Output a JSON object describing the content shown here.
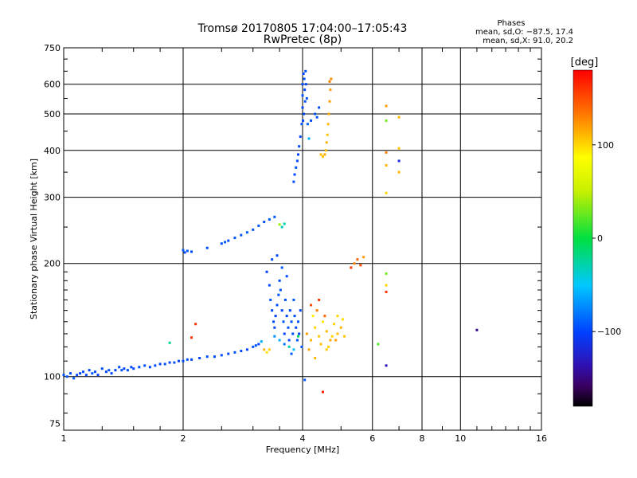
{
  "chart_data": {
    "type": "scatter",
    "title": "Tromsø 20170805 17:04:00–17:05:43",
    "subtitle": "RwPretec (8p)",
    "xlabel": "Frequency [MHz]",
    "ylabel": "Stationary phase Virtual Height [km]",
    "x_scale": "log2",
    "y_scale": "log",
    "xlim": [
      1,
      16
    ],
    "ylim": [
      72,
      750
    ],
    "x_ticks": [
      1,
      2,
      4,
      6,
      8,
      10,
      16
    ],
    "x_tick_labels": [
      "1",
      "2",
      "4",
      "6",
      "8",
      "10",
      "16"
    ],
    "y_ticks": [
      75,
      100,
      200,
      300,
      400,
      500,
      600,
      750
    ],
    "y_tick_labels": [
      "75",
      "100",
      "200",
      "300",
      "400",
      "500",
      "600",
      "750"
    ],
    "grid": true,
    "stats": {
      "heading": "Phases",
      "o_line": "mean, sd,O: −87.5, 17.4",
      "x_line": "mean, sd,X:  91.0, 20.2"
    },
    "colorbar": {
      "label": "[deg]",
      "range": [
        -180,
        180
      ],
      "ticks": [
        100,
        0,
        -100
      ],
      "tick_labels": [
        "100",
        "0",
        "−100"
      ],
      "colormap": "rainbow"
    },
    "series": [
      {
        "points": [
          [
            1.0,
            101,
            -95
          ],
          [
            1.02,
            100,
            -92
          ],
          [
            1.04,
            102,
            -98
          ],
          [
            1.06,
            99,
            -90
          ],
          [
            1.08,
            101,
            -96
          ],
          [
            1.1,
            102,
            -100
          ],
          [
            1.12,
            103,
            -94
          ],
          [
            1.14,
            101,
            -97
          ],
          [
            1.16,
            104,
            -99
          ],
          [
            1.18,
            102,
            -92
          ],
          [
            1.2,
            103,
            -96
          ],
          [
            1.22,
            101,
            -101
          ],
          [
            1.25,
            105,
            -95
          ],
          [
            1.28,
            103,
            -98
          ],
          [
            1.3,
            104,
            -93
          ],
          [
            1.32,
            102,
            -97
          ],
          [
            1.35,
            104,
            -100
          ],
          [
            1.38,
            106,
            -96
          ],
          [
            1.4,
            104,
            -94
          ],
          [
            1.42,
            105,
            -99
          ],
          [
            1.45,
            104,
            -95
          ],
          [
            1.48,
            106,
            -97
          ],
          [
            1.5,
            105,
            -100
          ],
          [
            1.55,
            106,
            -96
          ],
          [
            1.6,
            107,
            -94
          ],
          [
            1.65,
            106,
            -98
          ],
          [
            1.7,
            107,
            -96
          ],
          [
            1.75,
            108,
            -99
          ],
          [
            1.8,
            108,
            -95
          ],
          [
            1.85,
            109,
            -97
          ],
          [
            1.9,
            109,
            -94
          ],
          [
            1.95,
            110,
            -98
          ],
          [
            2.0,
            110,
            -96
          ],
          [
            2.05,
            111,
            -93
          ],
          [
            2.1,
            111,
            -97
          ],
          [
            2.2,
            112,
            -99
          ],
          [
            2.3,
            113,
            -94
          ],
          [
            2.4,
            113,
            -97
          ],
          [
            2.5,
            114,
            -95
          ],
          [
            2.6,
            115,
            -98
          ],
          [
            2.7,
            116,
            -93
          ],
          [
            2.8,
            117,
            -96
          ],
          [
            2.9,
            118,
            -97
          ],
          [
            3.0,
            120,
            -94
          ],
          [
            3.05,
            121,
            -92
          ],
          [
            3.1,
            122,
            -96
          ],
          [
            3.15,
            124,
            -60
          ],
          [
            3.2,
            118,
            110
          ],
          [
            3.25,
            116,
            95
          ],
          [
            3.3,
            118,
            100
          ],
          [
            2.1,
            127,
            160
          ],
          [
            1.85,
            123,
            -20
          ]
        ]
      },
      {
        "points": [
          [
            2.0,
            217,
            -90
          ],
          [
            2.02,
            214,
            -95
          ],
          [
            2.05,
            216,
            -92
          ],
          [
            2.1,
            215,
            -97
          ],
          [
            2.3,
            220,
            -96
          ],
          [
            2.5,
            226,
            -94
          ],
          [
            2.55,
            228,
            -90
          ],
          [
            2.6,
            230,
            -95
          ],
          [
            2.7,
            234,
            -92
          ],
          [
            2.8,
            238,
            -93
          ],
          [
            2.9,
            242,
            -90
          ],
          [
            3.0,
            246,
            -94
          ],
          [
            3.1,
            252,
            -91
          ],
          [
            3.2,
            258,
            -95
          ],
          [
            3.3,
            262,
            -92
          ],
          [
            3.4,
            266,
            -93
          ],
          [
            3.5,
            254,
            40
          ],
          [
            3.55,
            250,
            -30
          ]
        ]
      },
      {
        "points": [
          [
            3.25,
            190,
            -100
          ],
          [
            3.3,
            175,
            -95
          ],
          [
            3.32,
            160,
            -92
          ],
          [
            3.35,
            150,
            -97
          ],
          [
            3.38,
            140,
            -94
          ],
          [
            3.4,
            135,
            -98
          ],
          [
            3.42,
            145,
            -100
          ],
          [
            3.45,
            155,
            -95
          ],
          [
            3.48,
            165,
            -93
          ],
          [
            3.5,
            180,
            -96
          ],
          [
            3.52,
            170,
            -94
          ],
          [
            3.55,
            150,
            -99
          ],
          [
            3.58,
            140,
            -92
          ],
          [
            3.6,
            130,
            -97
          ],
          [
            3.62,
            160,
            -95
          ],
          [
            3.65,
            145,
            -98
          ],
          [
            3.68,
            135,
            -93
          ],
          [
            3.7,
            125,
            -96
          ],
          [
            3.72,
            150,
            -100
          ],
          [
            3.75,
            140,
            -94
          ],
          [
            3.78,
            130,
            -97
          ],
          [
            3.8,
            160,
            -92
          ],
          [
            3.82,
            145,
            -96
          ],
          [
            3.85,
            135,
            -98
          ],
          [
            3.88,
            125,
            -95
          ],
          [
            3.9,
            140,
            -93
          ],
          [
            3.92,
            130,
            -99
          ],
          [
            3.95,
            150,
            -96
          ],
          [
            3.98,
            120,
            -94
          ],
          [
            3.35,
            205,
            -95
          ],
          [
            3.45,
            210,
            -98
          ],
          [
            3.55,
            195,
            -92
          ],
          [
            3.65,
            185,
            -97
          ],
          [
            3.5,
            125,
            -60
          ],
          [
            3.7,
            120,
            -30
          ],
          [
            3.8,
            118,
            -50
          ],
          [
            3.4,
            128,
            -70
          ],
          [
            3.6,
            122,
            -80
          ],
          [
            3.9,
            128,
            -10
          ],
          [
            3.75,
            115,
            -90
          ]
        ]
      },
      {
        "points": [
          [
            3.8,
            330,
            -95
          ],
          [
            3.82,
            345,
            -98
          ],
          [
            3.85,
            360,
            -93
          ],
          [
            3.88,
            375,
            -96
          ],
          [
            3.9,
            390,
            -100
          ],
          [
            3.92,
            410,
            -94
          ],
          [
            3.95,
            435,
            -97
          ],
          [
            3.98,
            470,
            -95
          ],
          [
            4.0,
            520,
            -98
          ],
          [
            4.0,
            560,
            -93
          ],
          [
            4.0,
            600,
            -96
          ],
          [
            4.02,
            640,
            -100
          ],
          [
            4.04,
            620,
            -94
          ],
          [
            4.05,
            580,
            -97
          ],
          [
            4.06,
            540,
            -92
          ],
          [
            4.03,
            500,
            -96
          ],
          [
            4.01,
            480,
            -99
          ],
          [
            4.07,
            650,
            -95
          ],
          [
            4.08,
            600,
            -98
          ],
          [
            4.1,
            550,
            -93
          ],
          [
            4.12,
            470,
            -90
          ],
          [
            4.15,
            430,
            -60
          ],
          [
            4.2,
            480,
            -95
          ],
          [
            4.3,
            500,
            -92
          ],
          [
            4.4,
            520,
            -97
          ],
          [
            4.35,
            490,
            -94
          ]
        ]
      },
      {
        "points": [
          [
            4.45,
            390,
            110
          ],
          [
            4.5,
            385,
            105
          ],
          [
            4.55,
            390,
            115
          ],
          [
            4.58,
            400,
            108
          ],
          [
            4.6,
            420,
            112
          ],
          [
            4.62,
            440,
            106
          ],
          [
            4.64,
            470,
            110
          ],
          [
            4.66,
            500,
            114
          ],
          [
            4.68,
            540,
            118
          ],
          [
            4.7,
            580,
            120
          ],
          [
            4.72,
            620,
            125
          ],
          [
            4.68,
            610,
            130
          ]
        ]
      },
      {
        "points": [
          [
            4.1,
            130,
            120
          ],
          [
            4.2,
            125,
            110
          ],
          [
            4.3,
            135,
            100
          ],
          [
            4.4,
            128,
            105
          ],
          [
            4.5,
            140,
            95
          ],
          [
            4.6,
            132,
            110
          ],
          [
            4.7,
            125,
            115
          ],
          [
            4.8,
            138,
            100
          ],
          [
            4.9,
            130,
            108
          ],
          [
            5.0,
            135,
            112
          ],
          [
            5.1,
            128,
            105
          ],
          [
            4.25,
            145,
            90
          ],
          [
            4.35,
            150,
            130
          ],
          [
            4.55,
            145,
            140
          ],
          [
            4.75,
            128,
            100
          ],
          [
            4.15,
            118,
            115
          ],
          [
            4.45,
            122,
            108
          ],
          [
            4.65,
            120,
            102
          ],
          [
            4.85,
            125,
            118
          ],
          [
            5.05,
            142,
            96
          ],
          [
            4.2,
            155,
            150
          ],
          [
            4.4,
            160,
            160
          ],
          [
            4.3,
            112,
            110
          ],
          [
            4.6,
            118,
            104
          ],
          [
            4.9,
            145,
            99
          ]
        ]
      },
      {
        "points": [
          [
            5.5,
            205,
            140
          ],
          [
            5.6,
            198,
            150
          ],
          [
            5.4,
            200,
            130
          ],
          [
            5.7,
            208,
            120
          ],
          [
            5.3,
            195,
            160
          ]
        ]
      },
      {
        "points": [
          [
            6.5,
            525,
            120
          ],
          [
            6.5,
            480,
            30
          ],
          [
            6.5,
            395,
            130
          ],
          [
            6.5,
            365,
            110
          ],
          [
            6.5,
            308,
            100
          ],
          [
            6.5,
            188,
            30
          ],
          [
            6.5,
            175,
            100
          ],
          [
            6.5,
            168,
            160
          ],
          [
            6.5,
            107,
            -140
          ],
          [
            7.0,
            490,
            110
          ],
          [
            7.0,
            405,
            105
          ],
          [
            7.0,
            375,
            -120
          ],
          [
            7.0,
            350,
            110
          ],
          [
            11.0,
            133,
            -150
          ],
          [
            6.2,
            122,
            20
          ]
        ]
      },
      {
        "points": [
          [
            4.5,
            91,
            170
          ],
          [
            4.05,
            98,
            -90
          ],
          [
            2.15,
            138,
            160
          ],
          [
            3.6,
            255,
            -30
          ]
        ]
      }
    ]
  }
}
